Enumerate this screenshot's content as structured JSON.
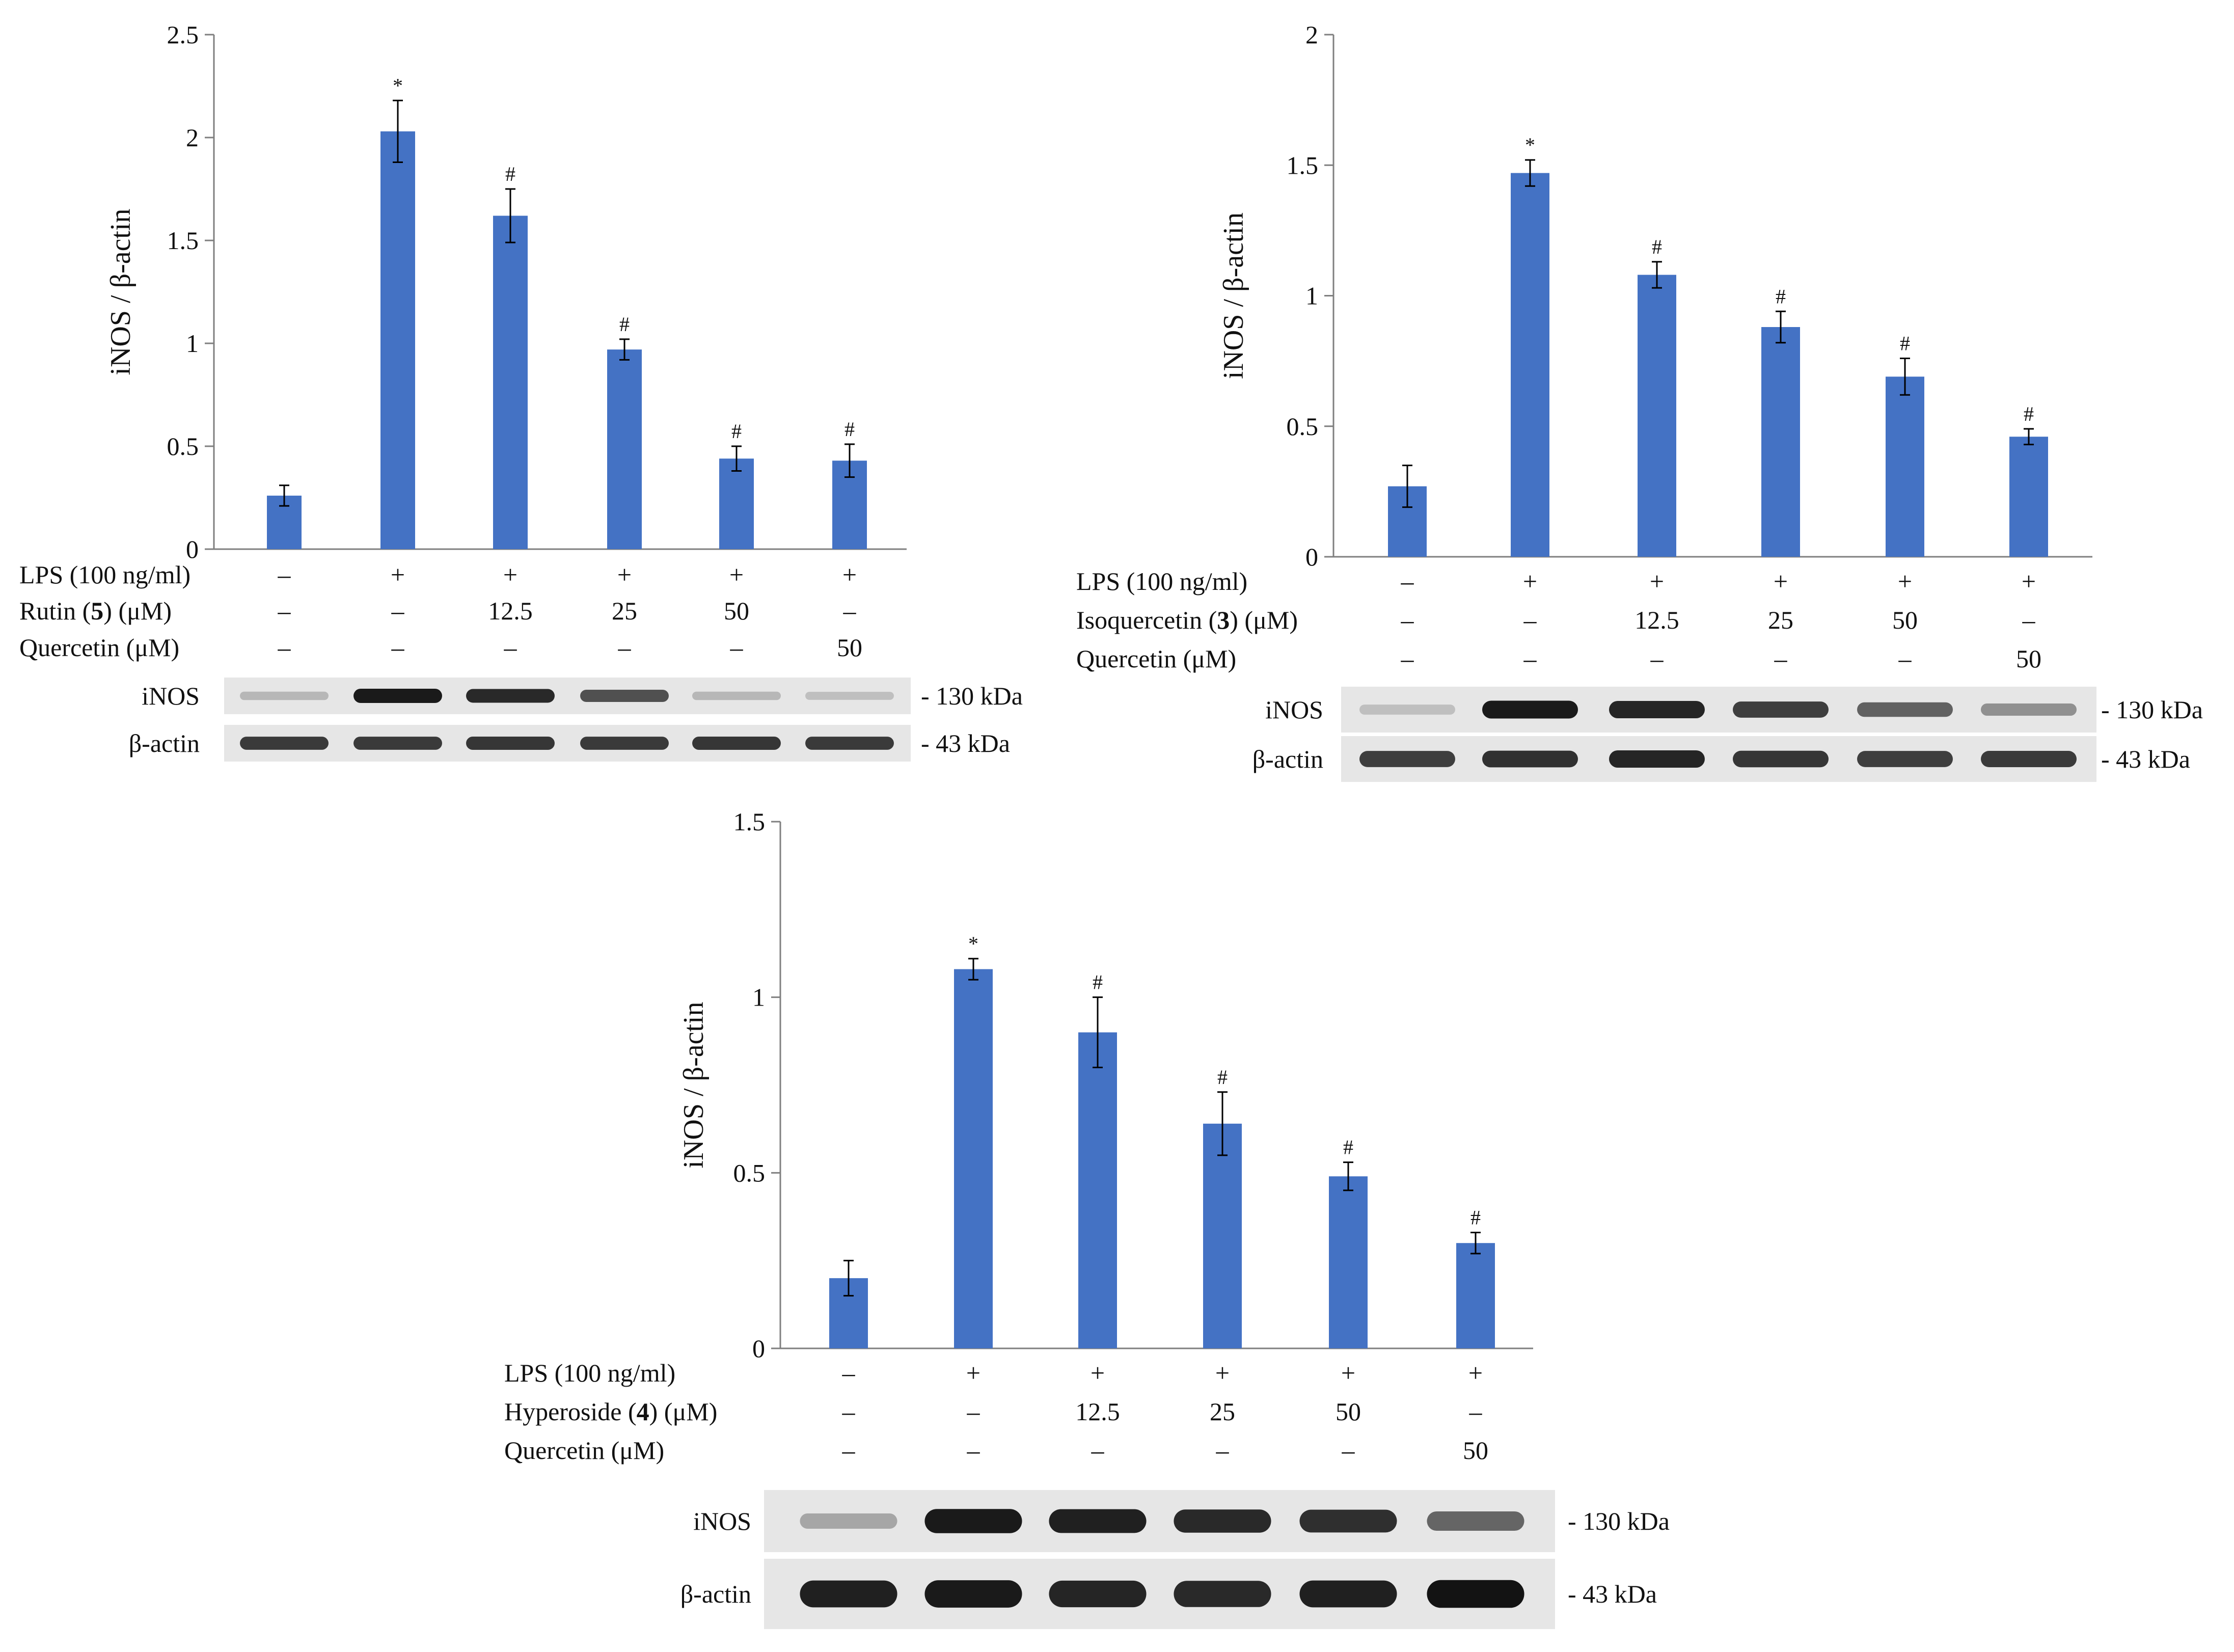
{
  "colors": {
    "bar": "#4472C4",
    "axis": "#7f7f7f",
    "text": "#111111",
    "blot_bg": "#e6e6e6"
  },
  "chart_data": [
    {
      "type": "bar",
      "ylabel": "iNOS / β-actin",
      "ylim": [
        0,
        2.5
      ],
      "yticks": [
        "0",
        "0.5",
        "1",
        "1.5",
        "2",
        "2.5"
      ],
      "ytick_values": [
        0,
        0.5,
        1,
        1.5,
        2,
        2.5
      ],
      "values": [
        0.26,
        2.03,
        1.62,
        0.97,
        0.44,
        0.43
      ],
      "errors": [
        0.05,
        0.15,
        0.13,
        0.05,
        0.06,
        0.08
      ],
      "sig": [
        "",
        "*",
        "#",
        "#",
        "#",
        "#"
      ],
      "treatments": [
        {
          "label": "LPS (100 ng/ml)",
          "values": [
            "–",
            "+",
            "+",
            "+",
            "+",
            "+"
          ]
        },
        {
          "label": "Rutin (5) (μM)",
          "values": [
            "–",
            "–",
            "12.5",
            "25",
            "50",
            "–"
          ]
        },
        {
          "label": "Quercetin (μM)",
          "values": [
            "–",
            "–",
            "–",
            "–",
            "–",
            "50"
          ]
        }
      ],
      "blots": [
        {
          "label": "iNOS",
          "kda": "- 130 kDa",
          "intensity": [
            0.22,
            0.95,
            0.88,
            0.7,
            0.22,
            0.18
          ]
        },
        {
          "label": "β-actin",
          "kda": "- 43 kDa",
          "intensity": [
            0.8,
            0.8,
            0.82,
            0.8,
            0.82,
            0.8
          ]
        }
      ]
    },
    {
      "type": "bar",
      "ylabel": "iNOS / β-actin",
      "ylim": [
        0,
        2
      ],
      "yticks": [
        "0",
        "0.5",
        "1",
        "1.5",
        "2"
      ],
      "ytick_values": [
        0,
        0.5,
        1,
        1.5,
        2
      ],
      "values": [
        0.27,
        1.47,
        1.08,
        0.88,
        0.69,
        0.46
      ],
      "errors": [
        0.08,
        0.05,
        0.05,
        0.06,
        0.07,
        0.03
      ],
      "sig": [
        "",
        "*",
        "#",
        "#",
        "#",
        "#"
      ],
      "treatments": [
        {
          "label": "LPS (100 ng/ml)",
          "values": [
            "–",
            "+",
            "+",
            "+",
            "+",
            "+"
          ]
        },
        {
          "label": "Isoquercetin (3) (μM)",
          "values": [
            "–",
            "–",
            "12.5",
            "25",
            "50",
            "–"
          ]
        },
        {
          "label": "Quercetin (μM)",
          "values": [
            "–",
            "–",
            "–",
            "–",
            "–",
            "50"
          ]
        }
      ],
      "blots": [
        {
          "label": "iNOS",
          "kda": "- 130 kDa",
          "intensity": [
            0.18,
            0.95,
            0.9,
            0.78,
            0.62,
            0.4
          ]
        },
        {
          "label": "β-actin",
          "kda": "- 43 kDa",
          "intensity": [
            0.78,
            0.84,
            0.9,
            0.82,
            0.78,
            0.8
          ]
        }
      ]
    },
    {
      "type": "bar",
      "ylabel": "iNOS / β-actin",
      "ylim": [
        0,
        1.5
      ],
      "yticks": [
        "0",
        "0.5",
        "1",
        "1.5"
      ],
      "ytick_values": [
        0,
        0.5,
        1,
        1.5
      ],
      "values": [
        0.2,
        1.08,
        0.9,
        0.64,
        0.49,
        0.3
      ],
      "errors": [
        0.05,
        0.03,
        0.1,
        0.09,
        0.04,
        0.03
      ],
      "sig": [
        "",
        "*",
        "#",
        "#",
        "#",
        "#"
      ],
      "treatments": [
        {
          "label": "LPS (100 ng/ml)",
          "values": [
            "–",
            "+",
            "+",
            "+",
            "+",
            "+"
          ]
        },
        {
          "label": "Hyperoside (4) (μM)",
          "values": [
            "–",
            "–",
            "12.5",
            "25",
            "50",
            "–"
          ]
        },
        {
          "label": "Quercetin (μM)",
          "values": [
            "–",
            "–",
            "–",
            "–",
            "–",
            "50"
          ]
        }
      ],
      "blots": [
        {
          "label": "iNOS",
          "kda": "- 130 kDa",
          "intensity": [
            0.3,
            0.95,
            0.92,
            0.88,
            0.85,
            0.6
          ]
        },
        {
          "label": "β-actin",
          "kda": "- 43 kDa",
          "intensity": [
            0.92,
            0.95,
            0.9,
            0.88,
            0.92,
            0.98
          ]
        }
      ]
    }
  ]
}
